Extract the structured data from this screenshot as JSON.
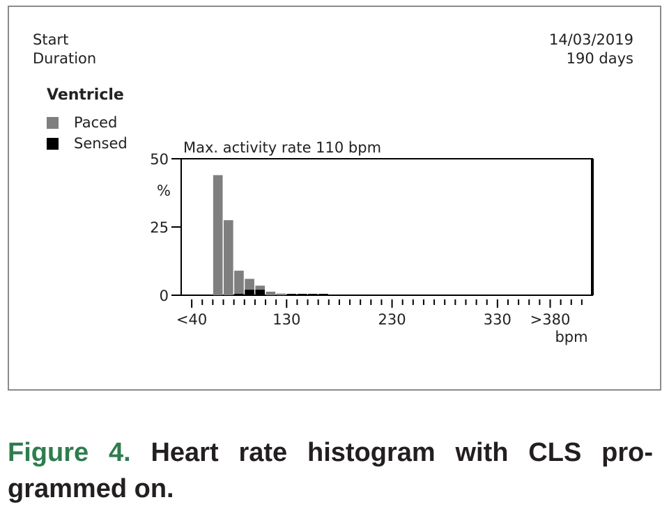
{
  "info": {
    "start_label": "Start",
    "start_value": "14/03/2019",
    "duration_label": "Duration",
    "duration_value": "190 days"
  },
  "legend": {
    "title": "Ventricle",
    "items": [
      {
        "label": "Paced",
        "color": "#7f7f7f"
      },
      {
        "label": "Sensed",
        "color": "#000000"
      }
    ]
  },
  "chart_data": {
    "type": "bar",
    "stacked": true,
    "title": "Max. activity rate 110 bpm",
    "ylabel": "%",
    "xlabel": "bpm",
    "ylim": [
      0,
      50
    ],
    "y_ticks": [
      {
        "value": 0,
        "label": "0"
      },
      {
        "value": 25,
        "label": "25"
      },
      {
        "value": 50,
        "label": "50"
      }
    ],
    "x_range": [
      30,
      420
    ],
    "x_tick_labels": [
      {
        "value": 40,
        "label": "<40"
      },
      {
        "value": 130,
        "label": "130"
      },
      {
        "value": 230,
        "label": "230"
      },
      {
        "value": 330,
        "label": "330"
      },
      {
        "value": 380,
        "label": ">380"
      }
    ],
    "bin_width": 10,
    "bins": [
      {
        "x": 60,
        "paced": 44,
        "sensed": 0
      },
      {
        "x": 70,
        "paced": 27.5,
        "sensed": 0
      },
      {
        "x": 80,
        "paced": 9,
        "sensed": 0.3
      },
      {
        "x": 90,
        "paced": 6,
        "sensed": 2
      },
      {
        "x": 100,
        "paced": 3.5,
        "sensed": 2
      },
      {
        "x": 110,
        "paced": 1.3,
        "sensed": 0
      },
      {
        "x": 120,
        "paced": 0.6,
        "sensed": 0
      },
      {
        "x": 130,
        "paced": 0.4,
        "sensed": 0.2
      },
      {
        "x": 140,
        "paced": 0.4,
        "sensed": 0.2
      },
      {
        "x": 150,
        "paced": 0.3,
        "sensed": 0.2
      },
      {
        "x": 160,
        "paced": 0.3,
        "sensed": 0.2
      }
    ],
    "colors": {
      "paced": "#7f7f7f",
      "sensed": "#000000"
    }
  },
  "caption": {
    "figure_label": "Figure 4.",
    "text": "Heart rate histogram with CLS pro­grammed on."
  }
}
